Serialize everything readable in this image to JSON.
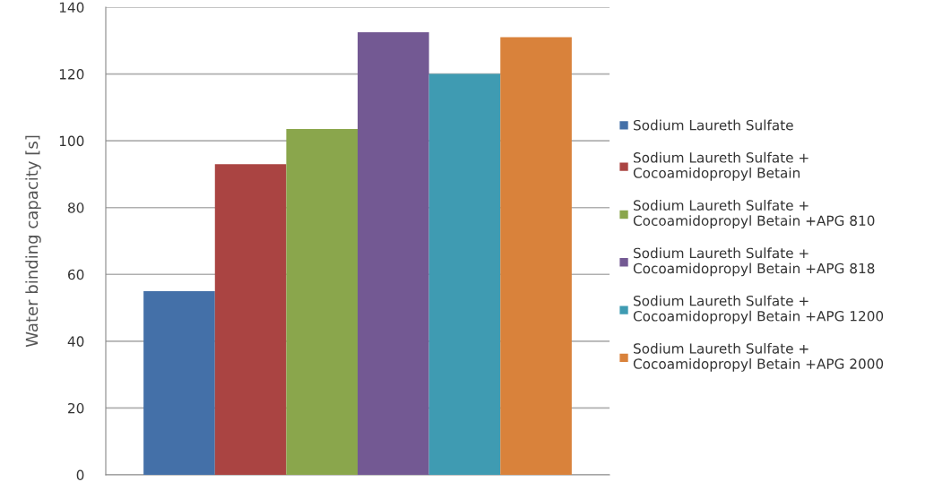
{
  "chart_data": {
    "type": "bar",
    "ylabel": "Water binding capacity [s]",
    "categories": [
      null
    ],
    "series": [
      {
        "name": "Sodium Laureth Sulfate",
        "color": "#4470a8",
        "values": [
          55
        ]
      },
      {
        "name": "Sodium Laureth Sulfate + Cocoamidopropyl Betain",
        "color": "#aa4442",
        "values": [
          93
        ]
      },
      {
        "name": "Sodium Laureth Sulfate + Cocoamidopropyl Betain +APG 810",
        "color": "#8aa64c",
        "values": [
          103.5
        ]
      },
      {
        "name": "Sodium Laureth Sulfate + Cocoamidopropyl Betain +APG 818",
        "color": "#735993",
        "values": [
          132.5
        ]
      },
      {
        "name": "Sodium Laureth Sulfate + Cocoamidopropyl Betain +APG 1200",
        "color": "#3f9bb2",
        "values": [
          120
        ]
      },
      {
        "name": "Sodium Laureth Sulfate + Cocoamidopropyl Betain +APG 2000",
        "color": "#d9823b",
        "values": [
          131
        ]
      }
    ],
    "ylim": [
      0,
      140
    ],
    "yticks": [
      0,
      20,
      40,
      60,
      80,
      100,
      120,
      140
    ],
    "grid": "y",
    "legend": "right"
  }
}
